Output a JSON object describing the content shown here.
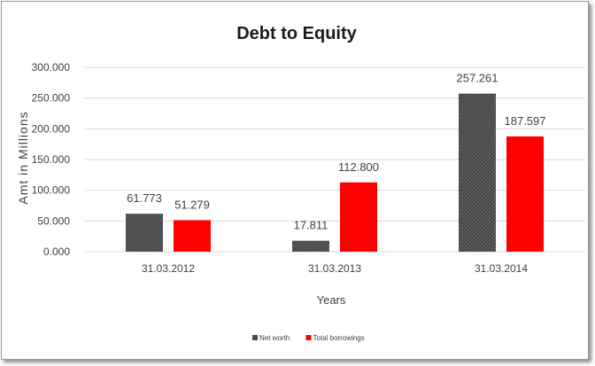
{
  "chart_data": {
    "type": "bar",
    "title": "Debt to Equity",
    "xlabel": "Years",
    "ylabel": "Amt in Millions",
    "categories": [
      "31.03.2012",
      "31.03.2013",
      "31.03.2014"
    ],
    "series": [
      {
        "name": "Net worth",
        "values": [
          61.773,
          17.811,
          257.261
        ],
        "color": "#4a4a4a",
        "labels": [
          "61.773",
          "17.811",
          "257.261"
        ]
      },
      {
        "name": "Total borrowings",
        "values": [
          51.279,
          112.8,
          187.597
        ],
        "color": "#ff0000",
        "labels": [
          "51.279",
          "112.800",
          "187.597"
        ]
      }
    ],
    "ylim": [
      0,
      300
    ],
    "yticks": [
      0,
      50,
      100,
      150,
      200,
      250,
      300
    ],
    "ytick_labels": [
      "0.000",
      "50.000",
      "100.000",
      "150.000",
      "200.000",
      "250.000",
      "300.000"
    ],
    "grid": true,
    "legend_position": "bottom"
  }
}
